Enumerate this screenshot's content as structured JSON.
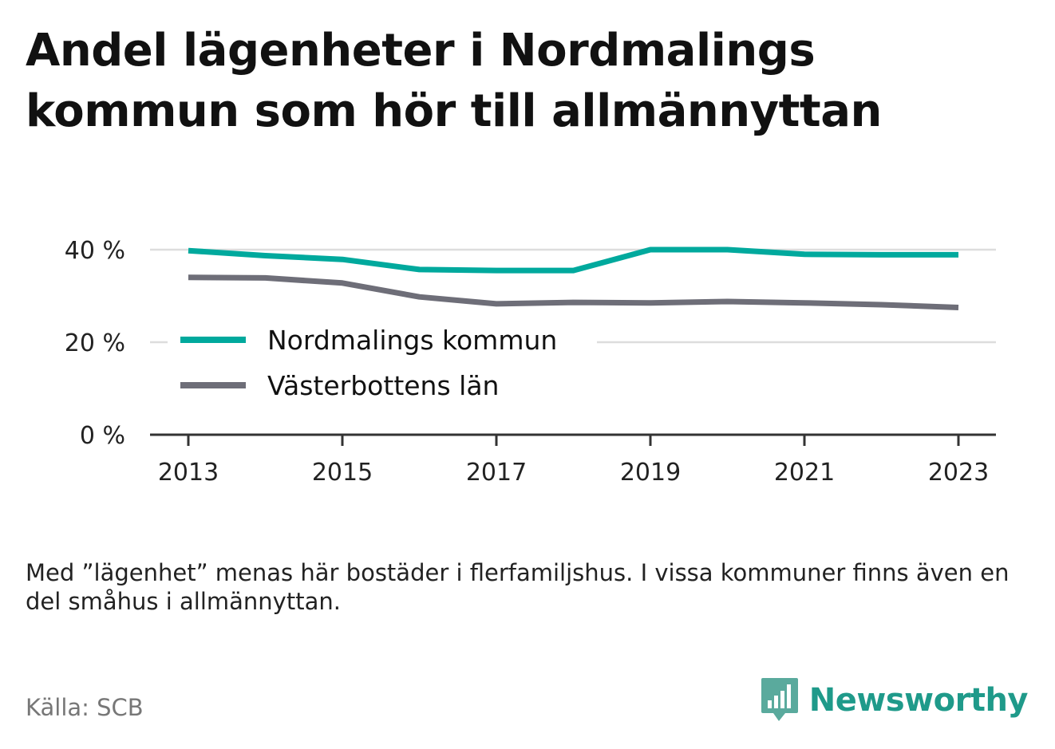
{
  "title": "Andel lägenheter i Nordmalings kommun som hör till allmännyttan",
  "note": "Med ”lägenhet” menas här bostäder i flerfamiljshus. I vissa kommuner finns även en del småhus i allmännyttan.",
  "source": "Källa: SCB",
  "brand": {
    "name": "Newsworthy",
    "icon": "newsworthy-logo-icon",
    "color": "#1f9a8a"
  },
  "chart_data": {
    "type": "line",
    "x": [
      2013,
      2014,
      2015,
      2016,
      2017,
      2018,
      2019,
      2020,
      2021,
      2022,
      2023
    ],
    "x_ticks": [
      "2013",
      "2015",
      "2017",
      "2019",
      "2021",
      "2023"
    ],
    "y_ticks": [
      "0 %",
      "20 %",
      "40 %"
    ],
    "ylim": [
      0,
      40
    ],
    "grid": true,
    "legend_placement": "center-left",
    "series": [
      {
        "name": "Nordmalings kommun",
        "color": "#00a99d",
        "values": [
          39.8,
          38.7,
          37.9,
          35.7,
          35.5,
          35.5,
          40.0,
          40.0,
          39.0,
          38.9,
          38.9
        ]
      },
      {
        "name": "Västerbottens län",
        "color": "#6e6e78",
        "values": [
          34.0,
          33.9,
          32.8,
          29.8,
          28.3,
          28.6,
          28.5,
          28.8,
          28.5,
          28.1,
          27.5
        ]
      }
    ]
  }
}
